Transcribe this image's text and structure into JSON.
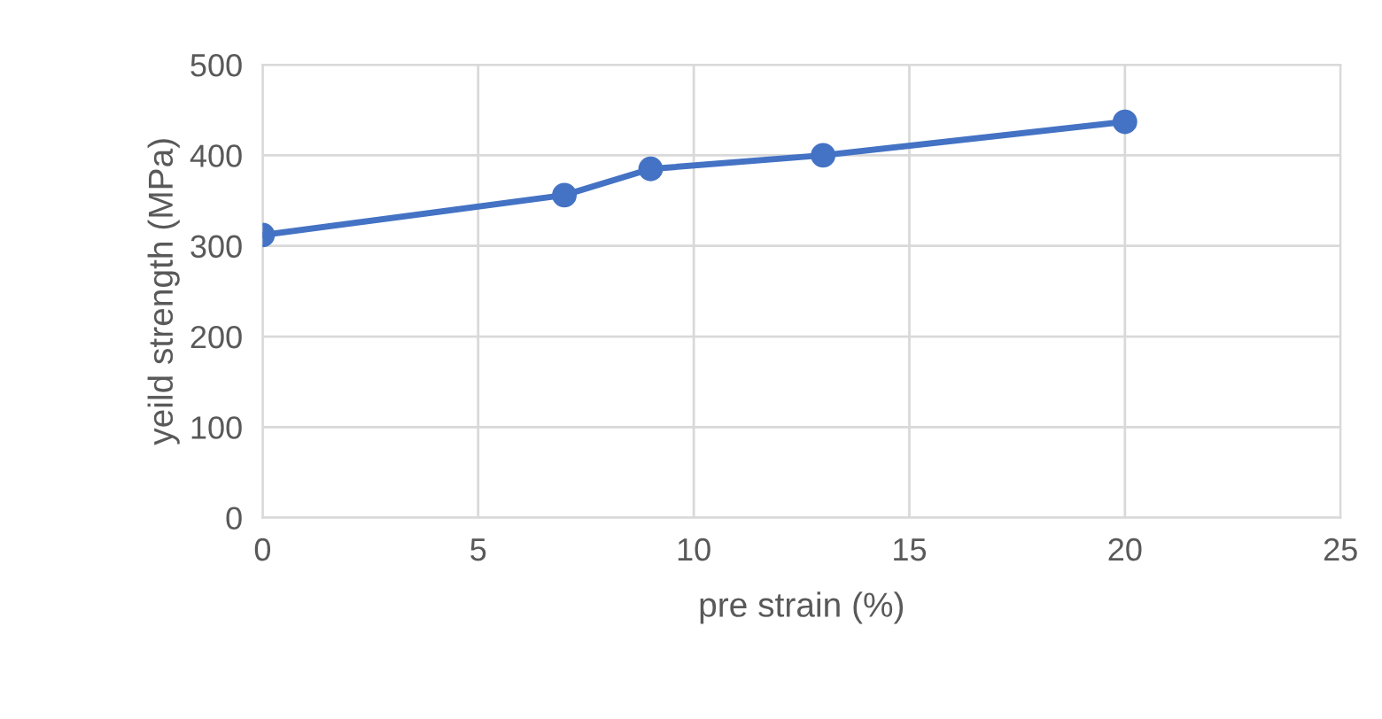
{
  "chart_data": {
    "type": "line",
    "xlabel": "pre strain (%)",
    "ylabel": "yeild strength (MPa)",
    "x": [
      0,
      7,
      9,
      13,
      20
    ],
    "series": [
      {
        "color": "#4472c4",
        "values": [
          312,
          356,
          385,
          400,
          437
        ]
      }
    ],
    "xlim": [
      0,
      25
    ],
    "xticks": [
      0,
      5,
      10,
      15,
      20,
      25
    ],
    "ylim": [
      0,
      500
    ],
    "yticks": [
      0,
      100,
      200,
      300,
      400,
      500
    ],
    "grid": true,
    "marker": "circle",
    "line_style": "solid"
  }
}
